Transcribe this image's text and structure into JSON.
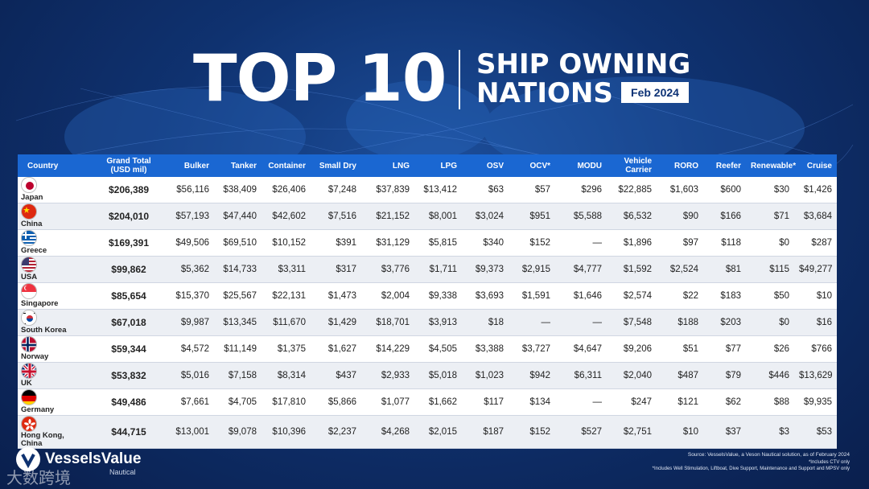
{
  "title": {
    "big": "TOP 10",
    "line1": "SHIP OWNING",
    "line2": "NATIONS",
    "date": "Feb 2024"
  },
  "chart_data": {
    "type": "table",
    "title": "TOP 10 SHIP OWNING NATIONS",
    "date": "Feb 2024",
    "columns": [
      "Country",
      "Grand Total (USD mil)",
      "Bulker",
      "Tanker",
      "Container",
      "Small Dry",
      "LNG",
      "LPG",
      "OSV",
      "OCV*",
      "MODU",
      "Vehicle Carrier",
      "RORO",
      "Reefer",
      "Renewable*",
      "Cruise"
    ],
    "rows": [
      {
        "country": "Japan",
        "flag": "japan",
        "cells": [
          "$206,389",
          "$56,116",
          "$38,409",
          "$26,406",
          "$7,248",
          "$37,839",
          "$13,412",
          "$63",
          "$57",
          "$296",
          "$22,885",
          "$1,603",
          "$600",
          "$30",
          "$1,426"
        ]
      },
      {
        "country": "China",
        "flag": "china",
        "cells": [
          "$204,010",
          "$57,193",
          "$47,440",
          "$42,602",
          "$7,516",
          "$21,152",
          "$8,001",
          "$3,024",
          "$951",
          "$5,588",
          "$6,532",
          "$90",
          "$166",
          "$71",
          "$3,684"
        ]
      },
      {
        "country": "Greece",
        "flag": "greece",
        "cells": [
          "$169,391",
          "$49,506",
          "$69,510",
          "$10,152",
          "$391",
          "$31,129",
          "$5,815",
          "$340",
          "$152",
          "—",
          "$1,896",
          "$97",
          "$118",
          "$0",
          "$287"
        ]
      },
      {
        "country": "USA",
        "flag": "usa",
        "cells": [
          "$99,862",
          "$5,362",
          "$14,733",
          "$3,311",
          "$317",
          "$3,776",
          "$1,711",
          "$9,373",
          "$2,915",
          "$4,777",
          "$1,592",
          "$2,524",
          "$81",
          "$115",
          "$49,277"
        ]
      },
      {
        "country": "Singapore",
        "flag": "singapore",
        "cells": [
          "$85,654",
          "$15,370",
          "$25,567",
          "$22,131",
          "$1,473",
          "$2,004",
          "$9,338",
          "$3,693",
          "$1,591",
          "$1,646",
          "$2,574",
          "$22",
          "$183",
          "$50",
          "$10"
        ]
      },
      {
        "country": "South Korea",
        "flag": "south-korea",
        "cells": [
          "$67,018",
          "$9,987",
          "$13,345",
          "$11,670",
          "$1,429",
          "$18,701",
          "$3,913",
          "$18",
          "—",
          "—",
          "$7,548",
          "$188",
          "$203",
          "$0",
          "$16"
        ]
      },
      {
        "country": "Norway",
        "flag": "norway",
        "cells": [
          "$59,344",
          "$4,572",
          "$11,149",
          "$1,375",
          "$1,627",
          "$14,229",
          "$4,505",
          "$3,388",
          "$3,727",
          "$4,647",
          "$9,206",
          "$51",
          "$77",
          "$26",
          "$766"
        ]
      },
      {
        "country": "UK",
        "flag": "uk",
        "cells": [
          "$53,832",
          "$5,016",
          "$7,158",
          "$8,314",
          "$437",
          "$2,933",
          "$5,018",
          "$1,023",
          "$942",
          "$6,311",
          "$2,040",
          "$487",
          "$79",
          "$446",
          "$13,629"
        ]
      },
      {
        "country": "Germany",
        "flag": "germany",
        "cells": [
          "$49,486",
          "$7,661",
          "$4,705",
          "$17,810",
          "$5,866",
          "$1,077",
          "$1,662",
          "$117",
          "$134",
          "—",
          "$247",
          "$121",
          "$62",
          "$88",
          "$9,935"
        ]
      },
      {
        "country": "Hong Kong, China",
        "flag": "hong-kong",
        "cells": [
          "$44,715",
          "$13,001",
          "$9,078",
          "$10,396",
          "$2,237",
          "$4,268",
          "$2,015",
          "$187",
          "$152",
          "$527",
          "$2,751",
          "$10",
          "$37",
          "$3",
          "$53"
        ]
      }
    ]
  },
  "logo": {
    "name": "VesselsValue",
    "sub": "Nautical"
  },
  "watermark": "大数跨境",
  "footnotes": [
    "Source: VesselsValue, a Veson Nautical solution, as of February 2024",
    "*Includes CTV only",
    "*Includes Well Stimulation, Liftboat, Dive Support, Maintenance and Support and MPSV only"
  ],
  "colors": {
    "header": "#1a67d2",
    "background": "#0f3270"
  }
}
